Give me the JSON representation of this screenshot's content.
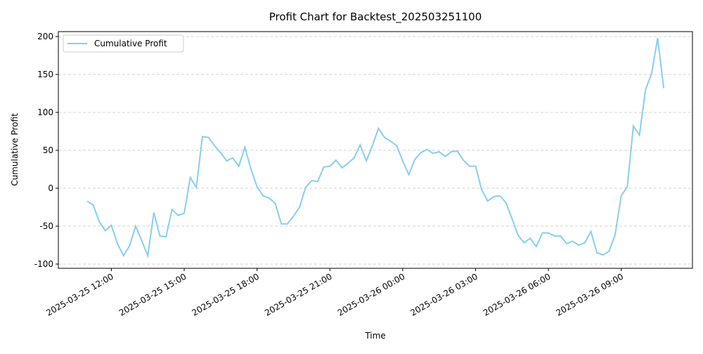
{
  "chart_data": {
    "type": "line",
    "title": "Profit Chart for Backtest_202503251100",
    "x_label": "Time",
    "y_label": "Cumulative Profit",
    "x": [
      "2025-03-25 11:00",
      "2025-03-25 11:15",
      "2025-03-25 11:30",
      "2025-03-25 11:45",
      "2025-03-25 12:00",
      "2025-03-25 12:15",
      "2025-03-25 12:30",
      "2025-03-25 12:45",
      "2025-03-25 13:00",
      "2025-03-25 13:15",
      "2025-03-25 13:30",
      "2025-03-25 13:45",
      "2025-03-25 14:00",
      "2025-03-25 14:15",
      "2025-03-25 14:30",
      "2025-03-25 14:45",
      "2025-03-25 15:00",
      "2025-03-25 15:15",
      "2025-03-25 15:30",
      "2025-03-25 15:45",
      "2025-03-25 16:00",
      "2025-03-25 16:15",
      "2025-03-25 16:30",
      "2025-03-25 16:45",
      "2025-03-25 17:00",
      "2025-03-25 17:15",
      "2025-03-25 17:30",
      "2025-03-25 17:45",
      "2025-03-25 18:00",
      "2025-03-25 18:15",
      "2025-03-25 18:30",
      "2025-03-25 18:45",
      "2025-03-25 19:00",
      "2025-03-25 19:15",
      "2025-03-25 19:30",
      "2025-03-25 19:45",
      "2025-03-25 20:00",
      "2025-03-25 20:15",
      "2025-03-25 20:30",
      "2025-03-25 20:45",
      "2025-03-25 21:00",
      "2025-03-25 21:15",
      "2025-03-25 21:30",
      "2025-03-25 21:45",
      "2025-03-25 22:00",
      "2025-03-25 22:15",
      "2025-03-25 22:30",
      "2025-03-25 22:45",
      "2025-03-25 23:00",
      "2025-03-25 23:15",
      "2025-03-25 23:30",
      "2025-03-25 23:45",
      "2025-03-26 00:00",
      "2025-03-26 00:15",
      "2025-03-26 00:30",
      "2025-03-26 00:45",
      "2025-03-26 01:00",
      "2025-03-26 01:15",
      "2025-03-26 01:30",
      "2025-03-26 01:45",
      "2025-03-26 02:00",
      "2025-03-26 02:15",
      "2025-03-26 02:30",
      "2025-03-26 02:45",
      "2025-03-26 03:00",
      "2025-03-26 03:15",
      "2025-03-26 03:30",
      "2025-03-26 03:45",
      "2025-03-26 04:00",
      "2025-03-26 04:15",
      "2025-03-26 04:30",
      "2025-03-26 04:45",
      "2025-03-26 05:00",
      "2025-03-26 05:15",
      "2025-03-26 05:30",
      "2025-03-26 05:45",
      "2025-03-26 06:00",
      "2025-03-26 06:15",
      "2025-03-26 06:30",
      "2025-03-26 06:45",
      "2025-03-26 07:00",
      "2025-03-26 07:15",
      "2025-03-26 07:30",
      "2025-03-26 07:45",
      "2025-03-26 08:00",
      "2025-03-26 08:15",
      "2025-03-26 08:30",
      "2025-03-26 08:45",
      "2025-03-26 09:00",
      "2025-03-26 09:15",
      "2025-03-26 09:30",
      "2025-03-26 09:45",
      "2025-03-26 10:00",
      "2025-03-26 10:15",
      "2025-03-26 10:30",
      "2025-03-26 10:45"
    ],
    "series": [
      {
        "name": "Cumulative Profit",
        "color": "#87ceeb",
        "values": [
          -17,
          -22,
          -44,
          -56,
          -49,
          -73,
          -89,
          -76,
          -50,
          -69,
          -89,
          -32,
          -63,
          -64,
          -28,
          -36,
          -33,
          14,
          1,
          68,
          67,
          56,
          47,
          36,
          40,
          29,
          54,
          25,
          2,
          -10,
          -13,
          -20,
          -47,
          -47,
          -37,
          -25,
          1,
          10,
          9,
          28,
          29,
          37,
          27,
          33,
          40,
          57,
          36,
          56,
          79,
          67,
          62,
          56,
          36,
          18,
          38,
          47,
          51,
          46,
          48,
          42,
          48,
          49,
          37,
          29,
          29,
          -2,
          -17,
          -11,
          -10,
          -19,
          -40,
          -62,
          -72,
          -66,
          -77,
          -59,
          -59,
          -63,
          -63,
          -73,
          -70,
          -75,
          -72,
          -57,
          -85,
          -88,
          -83,
          -61,
          -10,
          2,
          82,
          70,
          130,
          151,
          198,
          132
        ]
      }
    ],
    "xlim": [
      "2025-03-25 09:49",
      "2025-03-26 11:56"
    ],
    "xticks": [
      "2025-03-25 12:00",
      "2025-03-25 15:00",
      "2025-03-25 18:00",
      "2025-03-25 21:00",
      "2025-03-26 00:00",
      "2025-03-26 03:00",
      "2025-03-26 06:00",
      "2025-03-26 09:00"
    ],
    "ylim": [
      -105.6,
      206.5
    ],
    "yticks": [
      -100,
      -50,
      0,
      50,
      100,
      150,
      200
    ],
    "grid": true,
    "legend": "upper left"
  }
}
